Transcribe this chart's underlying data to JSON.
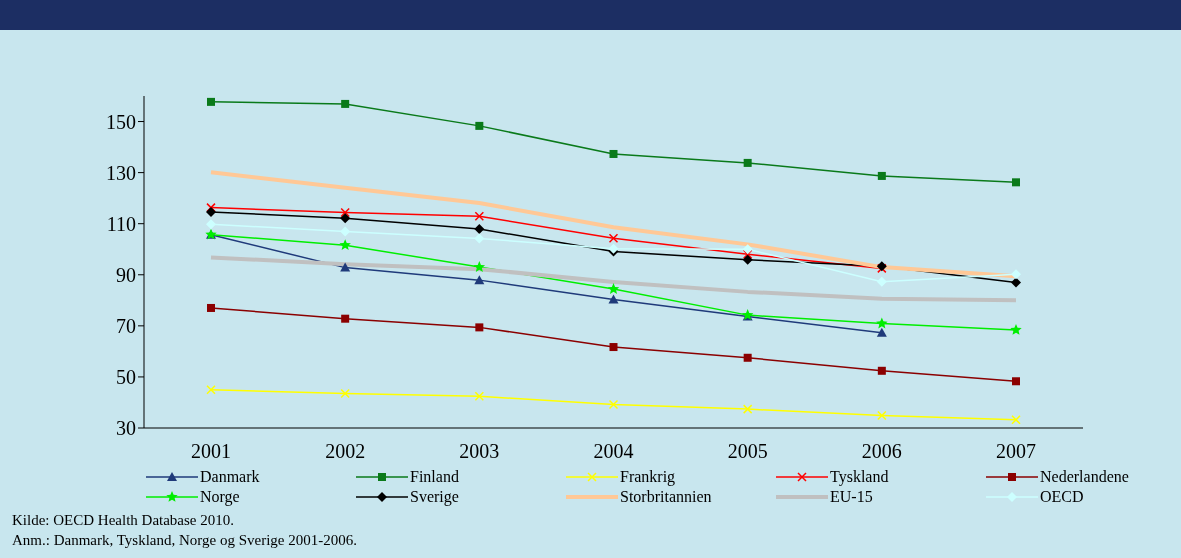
{
  "chart_data": {
    "type": "line",
    "categories": [
      "2001",
      "2002",
      "2003",
      "2004",
      "2005",
      "2006",
      "2007"
    ],
    "ylim": [
      30,
      160
    ],
    "yticks": [
      30,
      50,
      70,
      90,
      110,
      130,
      150
    ],
    "grid": false,
    "legend": "bottom",
    "annotations": [
      "Kilde: OECD Health Database 2010.",
      "Anm.: Danmark, Tyskland, Norge og Sverige 2001-2006."
    ],
    "series": [
      {
        "name": "Danmark",
        "color": "#1f3a7a",
        "marker": "triangle",
        "values": [
          105.7,
          92.8,
          87.9,
          80.3,
          73.7,
          67.3,
          null
        ]
      },
      {
        "name": "Finland",
        "color": "#0a7a1a",
        "marker": "square",
        "values": [
          157.7,
          156.9,
          148.3,
          137.3,
          133.8,
          128.7,
          126.2
        ]
      },
      {
        "name": "Frankrig",
        "color": "#ffff00",
        "marker": "cross",
        "values": [
          45.0,
          43.5,
          42.4,
          39.2,
          37.4,
          34.9,
          33.2
        ]
      },
      {
        "name": "Tyskland",
        "color": "#ff0000",
        "marker": "cross",
        "values": [
          116.3,
          114.4,
          112.9,
          104.3,
          98.0,
          92.5,
          null
        ]
      },
      {
        "name": "Nederlandene",
        "color": "#8b0000",
        "marker": "square",
        "values": [
          77.0,
          72.8,
          69.4,
          61.7,
          57.5,
          52.4,
          48.3
        ]
      },
      {
        "name": "Norge",
        "color": "#00ee00",
        "marker": "star",
        "values": [
          105.7,
          101.6,
          93.0,
          84.4,
          74.2,
          70.9,
          68.4
        ]
      },
      {
        "name": "Sverige",
        "color": "#000000",
        "marker": "diamond",
        "values": [
          114.6,
          112.1,
          107.9,
          99.1,
          95.9,
          93.3,
          87.0
        ]
      },
      {
        "name": "Storbritannien",
        "color": "#ffc896",
        "marker": "none",
        "values": [
          130.1,
          124.1,
          118.1,
          108.6,
          101.9,
          93.0,
          89.4
        ]
      },
      {
        "name": "EU-15",
        "color": "#c0c0c0",
        "marker": "none",
        "values": [
          96.8,
          94.1,
          92.2,
          87.2,
          83.3,
          80.6,
          80.0
        ]
      },
      {
        "name": "OECD",
        "color": "#ccffff",
        "marker": "diamond",
        "values": [
          109.8,
          106.9,
          104.2,
          100.2,
          100.0,
          87.3,
          90.2
        ]
      }
    ]
  }
}
